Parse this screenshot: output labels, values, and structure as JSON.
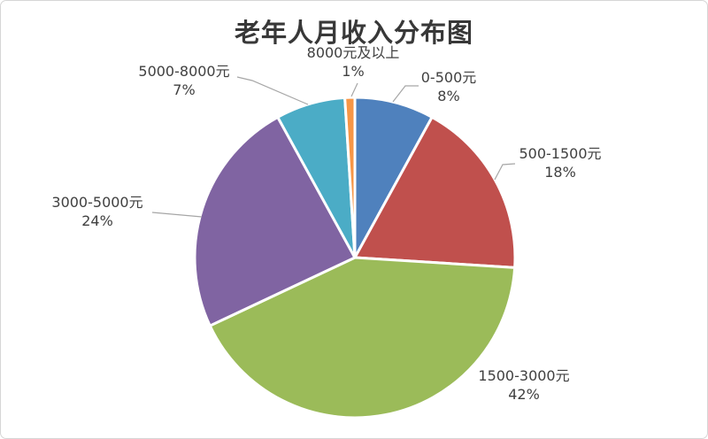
{
  "chart_data": {
    "type": "pie",
    "title": "老年人月收入分布图",
    "legend": "none",
    "start_angle_deg": 0,
    "direction": "clockwise",
    "label_style": "outside category name with percent, gray leader lines",
    "background_color": "#ffffff",
    "border_color": "#d6d6d6",
    "leader_line_color": "#a6a6a6",
    "title_color": "#383838",
    "label_color": "#404040",
    "categories": [
      "0-500元",
      "500-1500元",
      "1500-3000元",
      "3000-5000元",
      "5000-8000元",
      "8000元及以上"
    ],
    "values": [
      8,
      18,
      42,
      24,
      7,
      1
    ],
    "slices": [
      {
        "id": "0-500",
        "label": "0-500元",
        "value": 8,
        "pct_label": "8%",
        "color": "#4F81BD"
      },
      {
        "id": "500-1500",
        "label": "500-1500元",
        "value": 18,
        "pct_label": "18%",
        "color": "#C0504D"
      },
      {
        "id": "1500-3000",
        "label": "1500-3000元",
        "value": 42,
        "pct_label": "42%",
        "color": "#9BBB59"
      },
      {
        "id": "3000-5000",
        "label": "3000-5000元",
        "value": 24,
        "pct_label": "24%",
        "color": "#8064A2"
      },
      {
        "id": "5000-8000",
        "label": "5000-8000元",
        "value": 7,
        "pct_label": "7%",
        "color": "#4BACC6"
      },
      {
        "id": "8000-plus",
        "label": "8000元及以上",
        "value": 1,
        "pct_label": "1%",
        "color": "#F79646"
      }
    ]
  }
}
